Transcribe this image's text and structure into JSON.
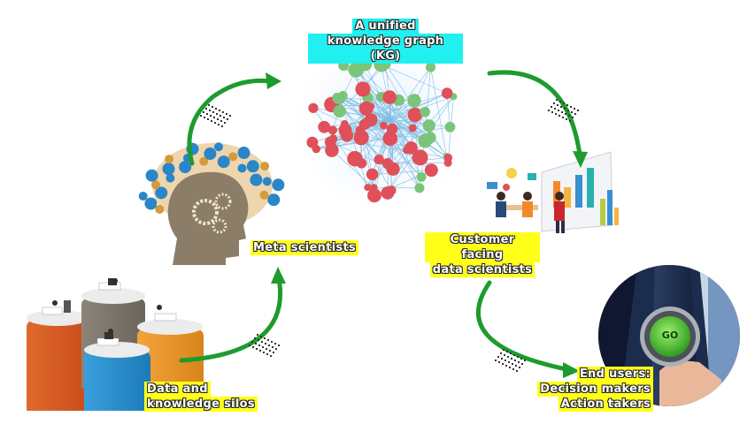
{
  "labels": {
    "kg": [
      "A unified",
      "knowledge graph (KG)"
    ],
    "meta": [
      "Meta scientists"
    ],
    "customer": [
      "Customer facing",
      "data scientists"
    ],
    "silos": [
      "Data and",
      "knowledge silos"
    ],
    "end_users": [
      "End users:",
      "Decision makers",
      "Action takers"
    ]
  },
  "go_button": "GO",
  "colors": {
    "arrow_green": "#1e9b2e",
    "label_yellow": "#ffff1a",
    "label_cyan": "#20f0f0",
    "node_red": "#e0505a",
    "node_green": "#7cc47a",
    "node_blue": "#3a8fd0"
  }
}
